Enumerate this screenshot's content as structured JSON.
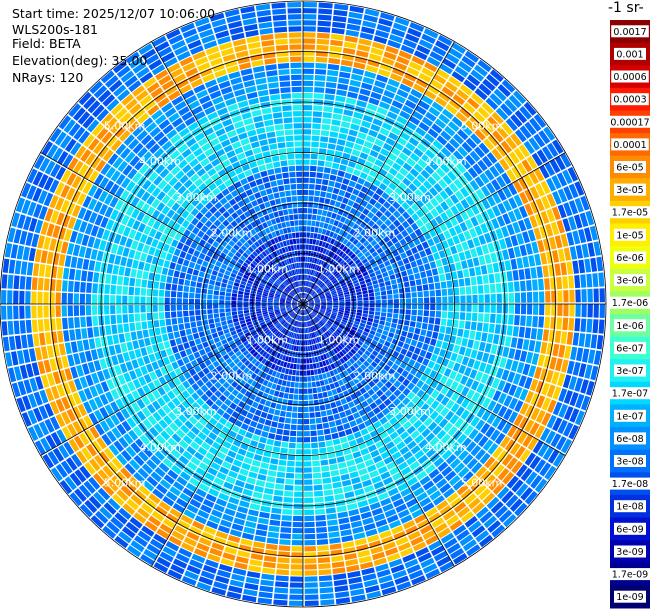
{
  "info": {
    "start_time": "Start time: 2025/12/07 10:06:00",
    "device": "WLS200s-181",
    "field": "Field: BETA",
    "elevation": "Elevation(deg): 35.00",
    "nrays": "NRays: 120"
  },
  "colorbar": {
    "title": "-1 sr-",
    "labels": [
      "0.0017",
      "0.001",
      "0.0006",
      "0.0003",
      "0.00017",
      "0.0001",
      "6e-05",
      "3e-05",
      "1.7e-05",
      "1e-05",
      "6e-06",
      "3e-06",
      "1.7e-06",
      "1e-06",
      "6e-07",
      "3e-07",
      "1.7e-07",
      "1e-07",
      "6e-08",
      "3e-08",
      "1.7e-08",
      "1e-08",
      "6e-09",
      "3e-09",
      "1.7e-09",
      "1e-09"
    ],
    "colors": [
      "#8b0000",
      "#b00000",
      "#d50000",
      "#ff1a00",
      "#ff4000",
      "#ff6a00",
      "#ff8c00",
      "#ffae00",
      "#ffd000",
      "#ffee00",
      "#f0ff10",
      "#c8ff40",
      "#a0ff60",
      "#70ffa0",
      "#40ffd0",
      "#20f0f0",
      "#00d8ff",
      "#00b0ff",
      "#0090ff",
      "#0070ff",
      "#0050f0",
      "#0030e0",
      "#0010d0",
      "#0000b0",
      "#000090",
      "#000070"
    ]
  },
  "chart_data": {
    "type": "heatmap",
    "projection": "polar-ppi",
    "field": "BETA",
    "rays": 120,
    "range_rings_km": [
      1.0,
      2.0,
      3.0,
      4.0,
      5.0
    ],
    "ring_labels": [
      "1.00km",
      "2.00km",
      "3.00km",
      "4.00km",
      "5.00km"
    ],
    "max_range_km": 6.0,
    "features": [
      {
        "range_km": [
          0.0,
          1.5
        ],
        "level": "1e-08"
      },
      {
        "range_km": [
          1.5,
          2.8
        ],
        "level": "3e-08"
      },
      {
        "range_km": [
          2.8,
          4.2
        ],
        "level": "1.7e-07"
      },
      {
        "range_km": [
          4.2,
          4.8
        ],
        "level": "6e-08"
      },
      {
        "range_km": [
          4.8,
          5.4
        ],
        "level": "3e-05"
      },
      {
        "range_km": [
          5.4,
          6.0
        ],
        "level": "3e-08"
      }
    ]
  }
}
